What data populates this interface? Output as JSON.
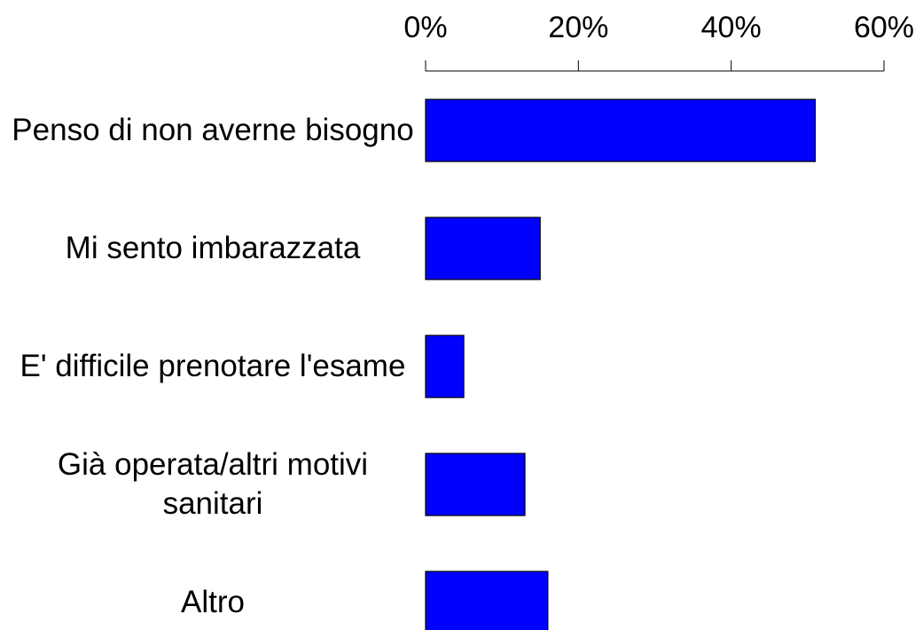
{
  "chart_data": {
    "type": "bar",
    "orientation": "horizontal",
    "categories": [
      "Penso di non averne bisogno",
      "Mi sento imbarazzata",
      "E' difficile prenotare l'esame",
      "Già operata/altri motivi sanitari",
      "Altro"
    ],
    "values": [
      51,
      15,
      5,
      13,
      16
    ],
    "color": "#0000ff",
    "xlim": [
      0,
      60
    ],
    "xticks": [
      {
        "value": 0,
        "label": "0%"
      },
      {
        "value": 20,
        "label": "20%"
      },
      {
        "value": 40,
        "label": "40%"
      },
      {
        "value": 60,
        "label": "60%"
      }
    ],
    "grid": false
  }
}
